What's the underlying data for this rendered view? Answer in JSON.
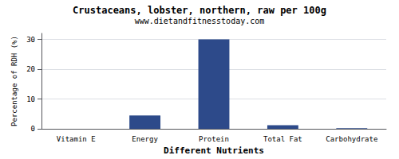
{
  "chart_data": {
    "type": "bar",
    "title": "Crustaceans, lobster, northern, raw per 100g",
    "subtitle": "www.dietandfitnesstoday.com",
    "xlabel": "Different Nutrients",
    "ylabel": "Percentage of RDH (%)",
    "categories": [
      "Vitamin E",
      "Energy",
      "Protein",
      "Total Fat",
      "Carbohydrate"
    ],
    "values": [
      0,
      4.5,
      30,
      1.2,
      0.2
    ],
    "color": "#2d4a8a",
    "ylim": [
      0,
      32
    ],
    "yticks": [
      0,
      10,
      20,
      30
    ],
    "grid": true
  }
}
